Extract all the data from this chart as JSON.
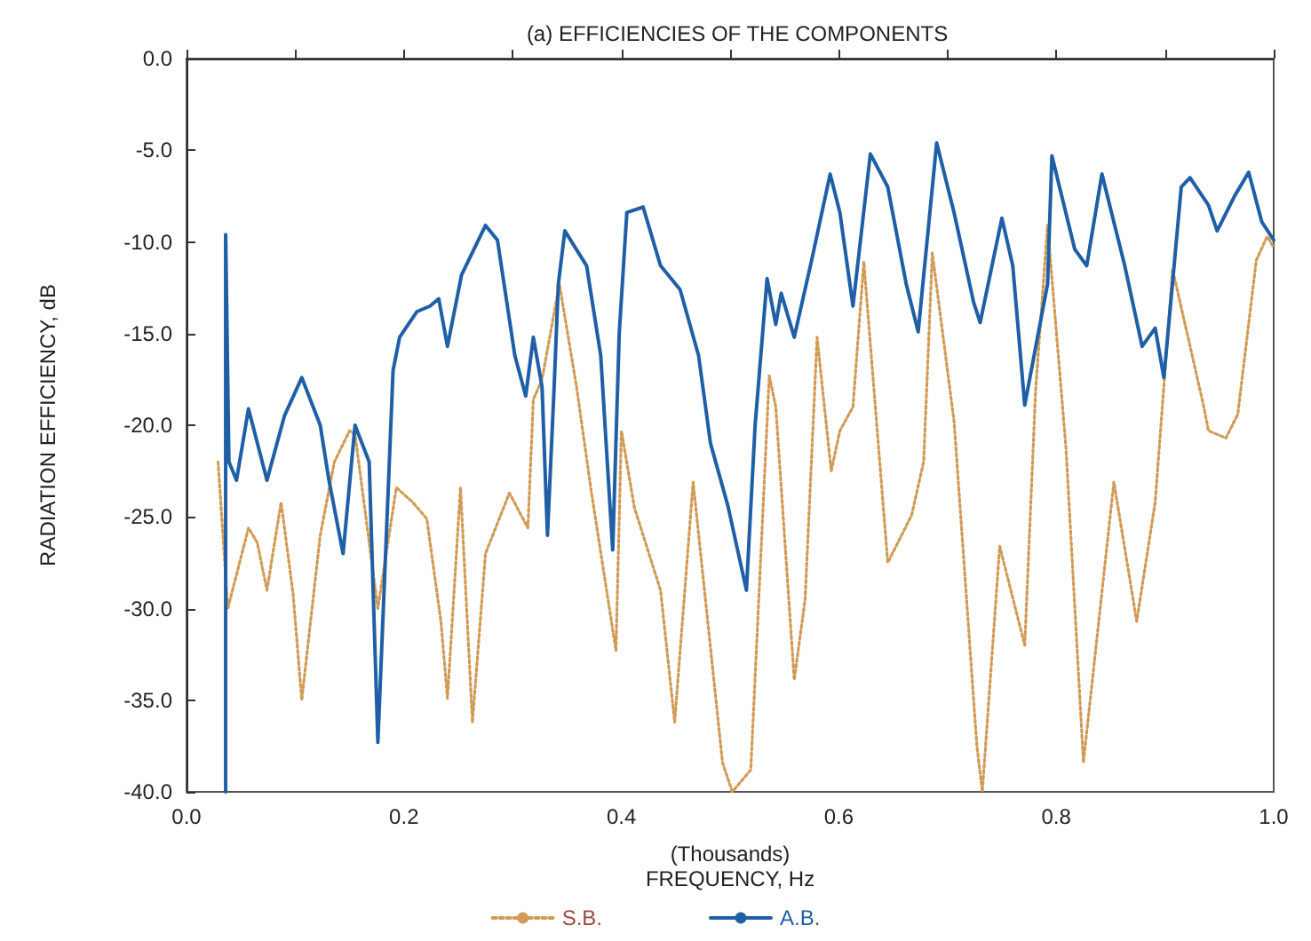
{
  "chart_data": {
    "type": "line",
    "title": "(a) EFFICIENCIES OF THE COMPONENTS",
    "xlabel": "(Thousands)\nFREQUENCY, Hz",
    "ylabel": "RADIATION EFFICIENCY, dB",
    "xlim": [
      0,
      1
    ],
    "ylim": [
      -40,
      0
    ],
    "xticks": [
      {
        "value": 0,
        "label": "0.0"
      },
      {
        "value": 0.1,
        "label": null
      },
      {
        "value": 0.2,
        "label": "0.2"
      },
      {
        "value": 0.3,
        "label": null
      },
      {
        "value": 0.4,
        "label": "0.4"
      },
      {
        "value": 0.5,
        "label": null
      },
      {
        "value": 0.6,
        "label": "0.6"
      },
      {
        "value": 0.7,
        "label": null
      },
      {
        "value": 0.8,
        "label": "0.8"
      },
      {
        "value": 0.9,
        "label": null
      },
      {
        "value": 1,
        "label": "1.0"
      }
    ],
    "yticks": [
      {
        "value": -40,
        "label": "-40.0"
      },
      {
        "value": -35,
        "label": "-35.0"
      },
      {
        "value": -30,
        "label": "-30.0"
      },
      {
        "value": -25,
        "label": "-25.0"
      },
      {
        "value": -20,
        "label": "-20.0"
      },
      {
        "value": -15,
        "label": "-15.0"
      },
      {
        "value": -10,
        "label": "-10.0"
      },
      {
        "value": -5,
        "label": "-5.0"
      },
      {
        "value": 0,
        "label": "0.0"
      }
    ],
    "grid": false,
    "legend": "bottom",
    "marker": "none",
    "series": [
      {
        "name": "S.B.",
        "color": "#d19a55",
        "line_style": "dotted",
        "x": [
          0.029,
          0.038,
          0.057,
          0.065,
          0.074,
          0.087,
          0.098,
          0.106,
          0.123,
          0.136,
          0.15,
          0.155,
          0.176,
          0.193,
          0.208,
          0.221,
          0.234,
          0.24,
          0.252,
          0.263,
          0.275,
          0.297,
          0.314,
          0.319,
          0.327,
          0.343,
          0.359,
          0.372,
          0.395,
          0.4,
          0.412,
          0.436,
          0.449,
          0.466,
          0.493,
          0.502,
          0.519,
          0.536,
          0.542,
          0.559,
          0.569,
          0.58,
          0.593,
          0.601,
          0.613,
          0.623,
          0.645,
          0.667,
          0.678,
          0.686,
          0.706,
          0.727,
          0.732,
          0.748,
          0.771,
          0.781,
          0.792,
          0.809,
          0.825,
          0.853,
          0.874,
          0.891,
          0.907,
          0.935,
          0.94,
          0.956,
          0.967,
          0.984,
          0.994,
          1.0
        ],
        "values": [
          -22,
          -30,
          -25.6,
          -26.4,
          -29,
          -24.2,
          -29.2,
          -35,
          -26,
          -22,
          -20.3,
          -20.5,
          -30,
          -23.4,
          -24.2,
          -25.1,
          -30.7,
          -34.9,
          -23.4,
          -36.2,
          -27,
          -23.7,
          -25.6,
          -18.6,
          -17.5,
          -12.3,
          -18,
          -23.5,
          -32.3,
          -20.3,
          -24.5,
          -29,
          -36.2,
          -23.1,
          -38.4,
          -40,
          -38.8,
          -17.3,
          -19,
          -33.9,
          -29.5,
          -15.2,
          -22.5,
          -20.3,
          -19,
          -11.1,
          -27.5,
          -24.9,
          -22,
          -10.6,
          -19.8,
          -37.5,
          -40,
          -26.6,
          -32,
          -18.1,
          -9.1,
          -21.3,
          -38.4,
          -23.1,
          -30.7,
          -24.2,
          -11.5,
          -18.8,
          -20.3,
          -20.7,
          -19.4,
          -11,
          -9.7,
          -10.3
        ]
      },
      {
        "name": "A.B.",
        "color": "#1f5fa6",
        "line_style": "solid",
        "x": [
          0.036,
          0.036,
          0.039,
          0.046,
          0.057,
          0.074,
          0.09,
          0.106,
          0.123,
          0.131,
          0.144,
          0.155,
          0.168,
          0.176,
          0.19,
          0.196,
          0.212,
          0.224,
          0.232,
          0.24,
          0.253,
          0.275,
          0.286,
          0.302,
          0.312,
          0.319,
          0.327,
          0.332,
          0.338,
          0.342,
          0.348,
          0.368,
          0.381,
          0.392,
          0.398,
          0.405,
          0.42,
          0.436,
          0.454,
          0.471,
          0.482,
          0.498,
          0.515,
          0.523,
          0.534,
          0.542,
          0.547,
          0.559,
          0.575,
          0.592,
          0.601,
          0.613,
          0.629,
          0.645,
          0.662,
          0.673,
          0.69,
          0.706,
          0.724,
          0.73,
          0.75,
          0.76,
          0.771,
          0.792,
          0.796,
          0.817,
          0.828,
          0.842,
          0.863,
          0.879,
          0.891,
          0.899,
          0.915,
          0.923,
          0.94,
          0.948,
          0.964,
          0.977,
          0.989,
          1.0
        ],
        "values": [
          -40,
          -9.6,
          -22,
          -23,
          -19.1,
          -23,
          -19.5,
          -17.4,
          -20,
          -23,
          -27,
          -20,
          -22,
          -37.3,
          -17,
          -15.2,
          -13.8,
          -13.5,
          -13.1,
          -15.7,
          -11.8,
          -9.1,
          -9.9,
          -16.2,
          -18.4,
          -15.2,
          -17.9,
          -26,
          -18.1,
          -12.3,
          -9.4,
          -11.3,
          -16.2,
          -26.8,
          -15,
          -8.4,
          -8.1,
          -11.3,
          -12.6,
          -16.2,
          -21,
          -24.4,
          -29,
          -20,
          -12,
          -14.5,
          -12.8,
          -15.2,
          -11,
          -6.3,
          -8.4,
          -13.5,
          -5.2,
          -7,
          -12.3,
          -14.9,
          -4.6,
          -8.4,
          -13.3,
          -14.4,
          -8.7,
          -11.3,
          -18.9,
          -12.3,
          -5.3,
          -10.4,
          -11.3,
          -6.3,
          -11.3,
          -15.7,
          -14.7,
          -17.4,
          -7,
          -6.5,
          -8,
          -9.4,
          -7.5,
          -6.2,
          -8.9,
          -9.9
        ]
      }
    ]
  }
}
